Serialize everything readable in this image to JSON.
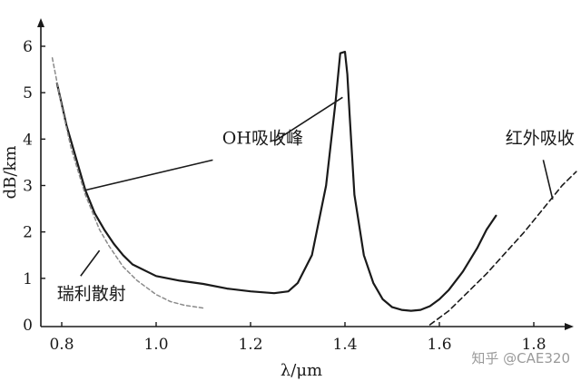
{
  "chart_data": {
    "type": "line",
    "xlabel": "λ/μm",
    "ylabel": "dB/km",
    "xlim": [
      0.77,
      1.9
    ],
    "ylim": [
      0,
      6.5
    ],
    "x_ticks": [
      "0.8",
      "1.0",
      "1.2",
      "1.4",
      "1.6",
      "1.8"
    ],
    "x_tick_values": [
      0.8,
      1.0,
      1.2,
      1.4,
      1.6,
      1.8
    ],
    "y_ticks": [
      "0",
      "1",
      "2",
      "3",
      "4",
      "5",
      "6"
    ],
    "y_tick_values": [
      0,
      1,
      2,
      3,
      4,
      5,
      6
    ],
    "grid": false,
    "series": [
      {
        "style": "solid",
        "x": [
          0.79,
          0.81,
          0.83,
          0.85,
          0.87,
          0.89,
          0.91,
          0.93,
          0.95,
          1.0,
          1.05,
          1.1,
          1.15,
          1.2,
          1.25,
          1.28,
          1.3,
          1.33,
          1.36,
          1.38,
          1.39,
          1.4,
          1.405,
          1.41,
          1.42,
          1.44,
          1.46,
          1.48,
          1.5,
          1.52,
          1.54,
          1.56,
          1.58,
          1.6,
          1.62,
          1.65,
          1.68,
          1.7,
          1.72
        ],
        "y": [
          5.2,
          4.3,
          3.6,
          2.9,
          2.4,
          2.05,
          1.75,
          1.5,
          1.3,
          1.05,
          0.95,
          0.88,
          0.78,
          0.72,
          0.68,
          0.72,
          0.9,
          1.5,
          3.0,
          4.8,
          5.85,
          5.88,
          5.4,
          4.5,
          2.8,
          1.5,
          0.9,
          0.55,
          0.38,
          0.32,
          0.3,
          0.32,
          0.4,
          0.55,
          0.75,
          1.15,
          1.65,
          2.05,
          2.35
        ]
      },
      {
        "style": "dashed-rayleigh",
        "x": [
          0.78,
          0.8,
          0.82,
          0.85,
          0.88,
          0.9,
          0.93,
          0.96,
          1.0,
          1.03,
          1.06,
          1.1
        ],
        "y": [
          5.75,
          4.7,
          3.8,
          2.8,
          2.05,
          1.7,
          1.25,
          0.95,
          0.65,
          0.5,
          0.42,
          0.36
        ]
      },
      {
        "style": "dashed-infrared",
        "x": [
          1.58,
          1.62,
          1.66,
          1.7,
          1.74,
          1.78,
          1.82,
          1.86,
          1.89
        ],
        "y": [
          0.0,
          0.3,
          0.7,
          1.1,
          1.55,
          2.0,
          2.5,
          3.0,
          3.3
        ]
      }
    ],
    "annotations": [
      {
        "text": "OH吸收峰",
        "tx": 1.14,
        "ty": 3.9,
        "lines": [
          [
            1.12,
            3.55,
            0.85,
            2.9
          ],
          [
            1.25,
            3.95,
            1.395,
            4.9
          ]
        ]
      },
      {
        "text": "红外吸收",
        "tx": 1.74,
        "ty": 3.9,
        "lines": [
          [
            1.82,
            3.55,
            1.84,
            2.7
          ]
        ]
      },
      {
        "text": "瑞利散射",
        "tx": 0.79,
        "ty": 0.55,
        "lines": [
          [
            0.84,
            1.05,
            0.88,
            1.6
          ]
        ]
      }
    ]
  },
  "watermark": "知乎 @CAE320"
}
